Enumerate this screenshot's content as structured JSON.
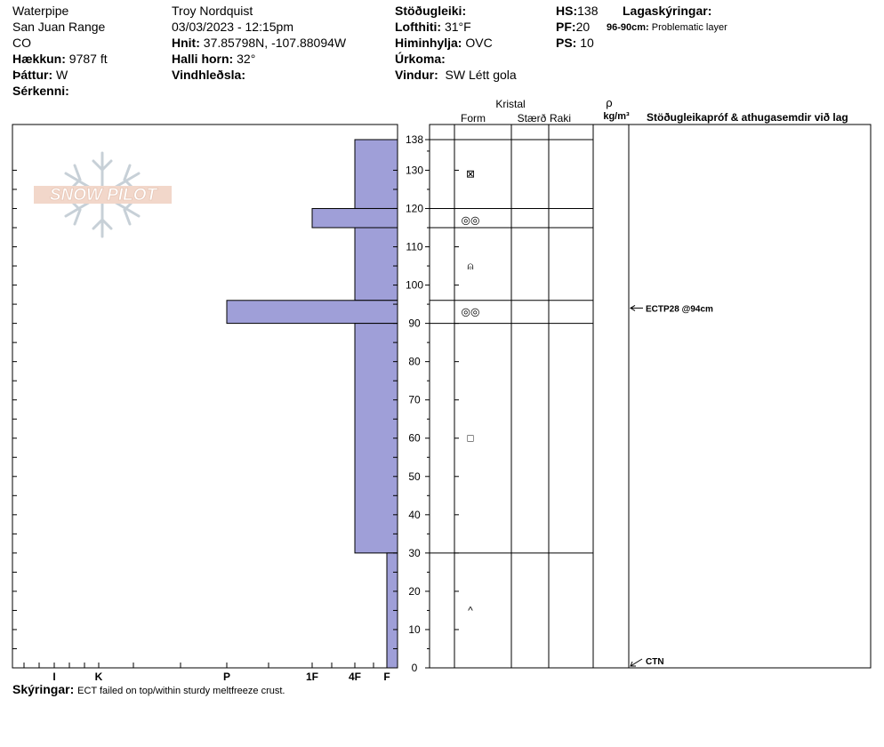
{
  "header": {
    "location": "Waterpipe",
    "range": "San Juan Range",
    "state": "CO",
    "elevation_label": "Hækkun:",
    "elevation": "9787 ft",
    "aspect_label": "Þáttur:",
    "aspect": "W",
    "features_label": "Sérkenni:",
    "observer": "Troy  Nordquist",
    "datetime": "03/03/2023 - 12:15pm",
    "coords_label": "Hnit:",
    "coords": "37.85798N, -107.88094W",
    "slope_label": "Halli horn:",
    "slope": "32°",
    "wind_loading_label": "Vindhleðsla:",
    "stability_label": "Stöðugleiki:",
    "air_temp_label": "Lofthiti:",
    "air_temp": "31°F",
    "sky_label": "Himinhylja:",
    "sky": "OVC",
    "precip_label": "Úrkoma:",
    "wind_label": "Vindur:",
    "wind": "SW Létt gola",
    "hs_label": "HS:",
    "hs": "138",
    "pf_label": "PF:",
    "pf": "20",
    "ps_label": "PS:",
    "ps": "10",
    "layer_notes_label": "Lagaskýringar:",
    "layer_note_range": "96-90cm:",
    "layer_note_text": "Problematic layer"
  },
  "logo_text": "SNOW PILOT",
  "columns": {
    "crystal": "Kristal",
    "form": "Form",
    "size": "Stærð",
    "moisture": "Raki",
    "rho": "ρ",
    "density_unit": "kg/m³",
    "tests": "Stöðugleikapróf & athugasemdir við lag"
  },
  "footer": {
    "label": "Skýringar:",
    "text": "ECT failed on top/within sturdy meltfreeze crust."
  },
  "colors": {
    "hardness_fill": "#9f9fd8",
    "hardness_stroke": "#000000"
  },
  "chart_data": {
    "type": "bar",
    "y_label": "",
    "ylim": [
      0,
      138
    ],
    "y_ticks": [
      "0",
      "10",
      "20",
      "30",
      "40",
      "50",
      "60",
      "70",
      "80",
      "90",
      "100",
      "110",
      "120",
      "130",
      "138"
    ],
    "hardness_scale": [
      "I",
      "K",
      "P",
      "1F",
      "4F",
      "F"
    ],
    "hardness_layers": [
      {
        "bottom": 120,
        "top": 138,
        "hardness": "4F"
      },
      {
        "bottom": 115,
        "top": 120,
        "hardness": "1F"
      },
      {
        "bottom": 96,
        "top": 115,
        "hardness": "4F"
      },
      {
        "bottom": 90,
        "top": 96,
        "hardness": "P"
      },
      {
        "bottom": 30,
        "top": 90,
        "hardness": "4F"
      },
      {
        "bottom": 0,
        "top": 30,
        "hardness": "F"
      }
    ],
    "layer_boundaries": [
      138,
      120,
      115,
      96,
      90,
      30
    ],
    "grain_forms": [
      {
        "height": 129,
        "symbol": "⊠",
        "form": "rounding faceted"
      },
      {
        "height": 117,
        "symbol": "◎◎",
        "form": "melt-freeze"
      },
      {
        "height": 105,
        "symbol": "⍝",
        "form": "rounding faceted"
      },
      {
        "height": 93,
        "symbol": "◎◎",
        "form": "melt-freeze"
      },
      {
        "height": 60,
        "symbol": "□",
        "form": "faceted"
      },
      {
        "height": 15,
        "symbol": "^",
        "form": "depth hoar"
      }
    ],
    "stability_tests": [
      {
        "height": 94,
        "label": "ECTP28 @94cm"
      },
      {
        "height": 0,
        "label": "CTN"
      }
    ]
  }
}
